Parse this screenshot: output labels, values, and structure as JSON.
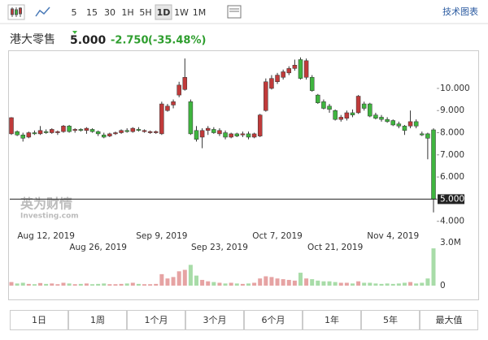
{
  "toolbar": {
    "intervals": [
      "5",
      "15",
      "30",
      "1H",
      "5H",
      "1D",
      "1W",
      "1M"
    ],
    "active": "1D",
    "link": "技术图表"
  },
  "header": {
    "name": "港大零售",
    "price": "5.000",
    "change": "-2.750",
    "change_pct": "(-35.48%)"
  },
  "watermark": {
    "brand": "英为财情",
    "site": "Investing.com"
  },
  "ranges": [
    "1日",
    "1周",
    "1个月",
    "3个月",
    "6个月",
    "1年",
    "5年",
    "最大值"
  ],
  "chart_data": {
    "type": "candlestick",
    "categories": [
      null,
      null,
      null,
      null,
      null,
      null,
      "Aug 12, 2019",
      null,
      null,
      null,
      null,
      null,
      null,
      null,
      null,
      "Aug 26, 2019",
      null,
      null,
      null,
      null,
      null,
      null,
      null,
      null,
      null,
      null,
      "Sep 9, 2019",
      null,
      null,
      null,
      null,
      null,
      null,
      null,
      null,
      null,
      "Sep 23, 2019",
      null,
      null,
      null,
      null,
      null,
      null,
      null,
      null,
      null,
      "Oct 7, 2019",
      null,
      null,
      null,
      null,
      null,
      null,
      null,
      null,
      null,
      "Oct 21, 2019",
      null,
      null,
      null,
      null,
      null,
      null,
      null,
      null,
      null,
      "Nov 4, 2019",
      null,
      null,
      null,
      null,
      null,
      null,
      null
    ],
    "open": [
      7.95,
      8.05,
      7.9,
      7.8,
      8.0,
      7.95,
      8.05,
      8.0,
      8.0,
      8.05,
      8.3,
      8.1,
      8.15,
      8.1,
      8.15,
      8.05,
      7.9,
      7.85,
      7.95,
      8.0,
      8.1,
      8.05,
      8.15,
      8.05,
      8.0,
      8.0,
      7.95,
      9.0,
      9.25,
      9.7,
      9.95,
      9.4,
      8.1,
      7.8,
      8.1,
      8.15,
      7.95,
      8.0,
      7.8,
      7.95,
      7.9,
      7.95,
      7.8,
      7.85,
      9.0,
      10.0,
      10.3,
      10.5,
      10.7,
      10.9,
      11.3,
      10.5,
      10.5,
      9.7,
      9.4,
      9.2,
      9.0,
      8.6,
      8.65,
      8.9,
      8.9,
      9.3,
      9.3,
      8.8,
      8.7,
      8.6,
      8.55,
      8.4,
      8.3,
      8.3,
      8.5,
      7.95,
      7.95,
      8.13
    ],
    "high": [
      8.7,
      8.1,
      8.0,
      8.05,
      8.1,
      8.3,
      8.15,
      8.2,
      8.1,
      8.35,
      8.35,
      8.2,
      8.2,
      8.25,
      8.2,
      8.1,
      8.0,
      8.0,
      8.05,
      8.15,
      8.2,
      8.25,
      8.25,
      8.15,
      8.1,
      8.1,
      9.4,
      9.3,
      9.5,
      10.3,
      11.35,
      9.5,
      8.3,
      8.2,
      8.3,
      8.25,
      8.2,
      8.1,
      8.0,
      8.0,
      8.05,
      8.05,
      8.0,
      8.85,
      10.45,
      10.6,
      10.7,
      10.85,
      11.0,
      11.3,
      11.4,
      11.35,
      10.6,
      9.75,
      9.5,
      9.3,
      9.05,
      8.8,
      9.0,
      9.05,
      9.7,
      9.4,
      9.35,
      8.9,
      8.8,
      8.7,
      8.6,
      8.5,
      8.35,
      9.0,
      8.6,
      8.05,
      8.0,
      8.2
    ],
    "low": [
      7.9,
      7.85,
      7.6,
      7.75,
      7.9,
      7.9,
      7.95,
      7.95,
      7.9,
      8.0,
      8.0,
      8.0,
      8.05,
      7.95,
      8.0,
      7.85,
      7.75,
      7.8,
      7.9,
      7.95,
      8.0,
      8.0,
      8.05,
      8.0,
      7.95,
      7.95,
      7.9,
      8.95,
      9.1,
      9.6,
      9.9,
      7.9,
      7.6,
      7.3,
      7.9,
      7.95,
      7.85,
      7.7,
      7.75,
      7.8,
      7.8,
      7.7,
      7.75,
      7.8,
      8.95,
      9.95,
      10.2,
      10.4,
      10.6,
      10.8,
      10.4,
      10.4,
      9.85,
      9.3,
      9.05,
      8.9,
      8.55,
      8.5,
      8.55,
      8.7,
      8.85,
      9.0,
      8.7,
      8.6,
      8.5,
      8.45,
      8.3,
      8.2,
      7.9,
      8.2,
      8.2,
      7.85,
      6.8,
      4.4
    ],
    "close": [
      8.68,
      7.9,
      7.75,
      8.0,
      7.95,
      8.1,
      8.0,
      8.15,
      8.05,
      8.3,
      8.05,
      8.15,
      8.1,
      8.2,
      8.05,
      7.95,
      7.8,
      7.95,
      8.0,
      8.1,
      8.05,
      8.2,
      8.1,
      8.1,
      8.05,
      8.05,
      9.3,
      9.2,
      9.4,
      10.15,
      10.5,
      7.95,
      7.7,
      8.1,
      8.2,
      8.0,
      8.1,
      7.8,
      7.95,
      7.85,
      7.95,
      7.8,
      7.95,
      8.8,
      10.3,
      10.45,
      10.6,
      10.75,
      10.9,
      11.05,
      10.45,
      11.25,
      9.9,
      9.35,
      9.1,
      9.05,
      8.6,
      8.7,
      8.9,
      8.8,
      9.65,
      9.1,
      8.75,
      8.65,
      8.6,
      8.5,
      8.35,
      8.3,
      8.1,
      8.5,
      8.3,
      7.9,
      7.75,
      5.0
    ],
    "volume": [
      0.25,
      0.15,
      0.2,
      0.12,
      0.1,
      0.18,
      0.12,
      0.15,
      0.1,
      0.2,
      0.15,
      0.1,
      0.12,
      0.15,
      0.1,
      0.12,
      0.15,
      0.1,
      0.1,
      0.12,
      0.15,
      0.2,
      0.12,
      0.1,
      0.1,
      0.12,
      0.8,
      0.5,
      0.6,
      1.0,
      1.1,
      1.45,
      0.7,
      0.4,
      0.3,
      0.25,
      0.2,
      0.15,
      0.2,
      0.15,
      0.12,
      0.15,
      0.2,
      0.5,
      0.65,
      0.6,
      0.5,
      0.45,
      0.4,
      0.35,
      0.9,
      0.5,
      0.45,
      0.35,
      0.3,
      0.3,
      0.25,
      0.2,
      0.2,
      0.15,
      0.3,
      0.2,
      0.2,
      0.15,
      0.12,
      0.15,
      0.12,
      0.15,
      0.2,
      0.25,
      0.15,
      0.2,
      0.5,
      2.6
    ],
    "up_color": "#c03a3a",
    "down_color": "#3fb53f",
    "up_volume_color": "#e6a3a3",
    "down_volume_color": "#a8dca8",
    "ylim": [
      3.55,
      11.5
    ],
    "yticks": [
      {
        "value": 4,
        "label": "4.000"
      },
      {
        "value": 5,
        "label": "5.000"
      },
      {
        "value": 6,
        "label": "6.000"
      },
      {
        "value": 7,
        "label": "7.000"
      },
      {
        "value": 8,
        "label": "8.000"
      },
      {
        "value": 9,
        "label": "9.000"
      },
      {
        "value": 10,
        "label": "10.000"
      }
    ],
    "volume_lim": [
      0,
      3
    ],
    "volume_ticks": [
      0,
      {
        "value": 3,
        "label": "3.0M"
      }
    ]
  }
}
